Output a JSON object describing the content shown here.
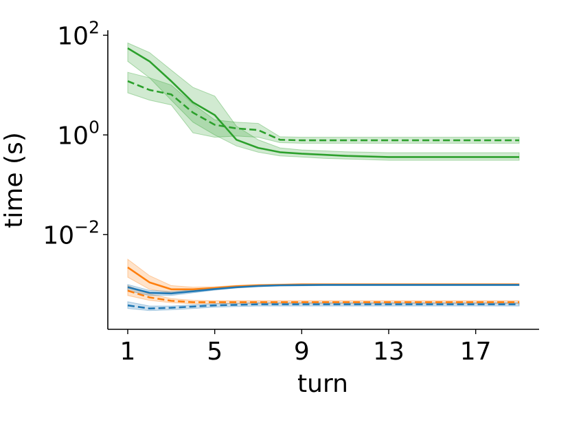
{
  "chart_data": {
    "type": "line",
    "title": "",
    "xlabel": "turn",
    "ylabel": "time (s)",
    "xlim": [
      1,
      19
    ],
    "ylim_log10": [
      -3.9,
      2.1
    ],
    "yscale": "log",
    "grid": false,
    "legend": "none",
    "x_ticks": [
      1,
      5,
      9,
      13,
      17
    ],
    "y_ticks": [
      {
        "log10": 2,
        "base": "10",
        "exp": "2"
      },
      {
        "log10": 0,
        "base": "10",
        "exp": "0"
      },
      {
        "log10": -2,
        "base": "10",
        "exp": "−2"
      }
    ],
    "x": [
      1,
      2,
      3,
      4,
      5,
      6,
      7,
      8,
      9,
      10,
      11,
      12,
      13,
      14,
      15,
      16,
      17,
      18,
      19
    ],
    "series": [
      {
        "color": "#2ca02c",
        "dash": "solid",
        "values": [
          55,
          30,
          12,
          4.5,
          2.5,
          0.8,
          0.55,
          0.45,
          0.42,
          0.4,
          0.38,
          0.37,
          0.36,
          0.36,
          0.36,
          0.36,
          0.36,
          0.36,
          0.36
        ],
        "lower": [
          30,
          14,
          5,
          1.8,
          1.0,
          0.6,
          0.45,
          0.38,
          0.36,
          0.34,
          0.33,
          0.32,
          0.31,
          0.31,
          0.31,
          0.31,
          0.31,
          0.31,
          0.31
        ],
        "upper": [
          70,
          45,
          20,
          9,
          6,
          1.5,
          0.8,
          0.55,
          0.5,
          0.48,
          0.46,
          0.45,
          0.44,
          0.44,
          0.44,
          0.44,
          0.44,
          0.44,
          0.44
        ]
      },
      {
        "color": "#2ca02c",
        "dash": "dashed",
        "values": [
          12,
          8,
          6.5,
          2.8,
          1.6,
          1.35,
          1.25,
          0.8,
          0.78,
          0.78,
          0.78,
          0.78,
          0.78,
          0.78,
          0.78,
          0.78,
          0.78,
          0.78,
          0.78
        ],
        "lower": [
          7,
          5,
          4,
          1.1,
          0.9,
          0.95,
          0.9,
          0.7,
          0.68,
          0.68,
          0.68,
          0.68,
          0.68,
          0.68,
          0.68,
          0.68,
          0.68,
          0.68,
          0.68
        ],
        "upper": [
          18,
          14,
          10,
          4.2,
          2.0,
          1.8,
          1.7,
          0.92,
          0.9,
          0.9,
          0.9,
          0.9,
          0.9,
          0.9,
          0.9,
          0.9,
          0.9,
          0.9,
          0.9
        ]
      },
      {
        "color": "#ff7f0e",
        "dash": "solid",
        "values": [
          0.0022,
          0.0011,
          0.0008,
          0.0008,
          0.00085,
          0.00092,
          0.00096,
          0.00098,
          0.001,
          0.001,
          0.001,
          0.001,
          0.001,
          0.001,
          0.001,
          0.001,
          0.001,
          0.001,
          0.001
        ],
        "lower": [
          0.0014,
          0.0008,
          0.00068,
          0.00072,
          0.0008,
          0.00088,
          0.00092,
          0.00094,
          0.00096,
          0.00096,
          0.00096,
          0.00096,
          0.00096,
          0.00096,
          0.00096,
          0.00096,
          0.00096,
          0.00096,
          0.00096
        ],
        "upper": [
          0.0032,
          0.0015,
          0.00095,
          0.00088,
          0.0009,
          0.00096,
          0.001,
          0.00102,
          0.00104,
          0.00104,
          0.00104,
          0.00104,
          0.00104,
          0.00104,
          0.00104,
          0.00104,
          0.00104,
          0.00104,
          0.00104
        ]
      },
      {
        "color": "#ff7f0e",
        "dash": "dashed",
        "values": [
          0.00075,
          0.00055,
          0.00047,
          0.00044,
          0.00044,
          0.00044,
          0.00044,
          0.00044,
          0.00044,
          0.00044,
          0.00044,
          0.00044,
          0.00044,
          0.00044,
          0.00044,
          0.00044,
          0.00044,
          0.00044,
          0.00044
        ],
        "lower": [
          0.0006,
          0.00048,
          0.00043,
          0.00041,
          0.00041,
          0.00041,
          0.00041,
          0.00041,
          0.00041,
          0.00041,
          0.00041,
          0.00041,
          0.00041,
          0.00041,
          0.00041,
          0.00041,
          0.00041,
          0.00041,
          0.00041
        ],
        "upper": [
          0.00095,
          0.00064,
          0.00052,
          0.00048,
          0.00047,
          0.00047,
          0.00047,
          0.00047,
          0.00047,
          0.00047,
          0.00047,
          0.00047,
          0.00047,
          0.00047,
          0.00047,
          0.00047,
          0.00047,
          0.00047,
          0.00047
        ]
      },
      {
        "color": "#1f77b4",
        "dash": "solid",
        "values": [
          0.00088,
          0.00068,
          0.00066,
          0.00073,
          0.00081,
          0.00088,
          0.00093,
          0.00096,
          0.00097,
          0.00098,
          0.00098,
          0.00098,
          0.00098,
          0.00098,
          0.00098,
          0.00098,
          0.00098,
          0.00098,
          0.00098
        ],
        "lower": [
          0.00075,
          0.0006,
          0.0006,
          0.00068,
          0.00077,
          0.00085,
          0.0009,
          0.00093,
          0.00094,
          0.00095,
          0.00095,
          0.00095,
          0.00095,
          0.00095,
          0.00095,
          0.00095,
          0.00095,
          0.00095,
          0.00095
        ],
        "upper": [
          0.001,
          0.00076,
          0.00072,
          0.00078,
          0.00085,
          0.00091,
          0.00096,
          0.00099,
          0.001,
          0.00101,
          0.00101,
          0.00101,
          0.00101,
          0.00101,
          0.00101,
          0.00101,
          0.00101,
          0.00101,
          0.00101
        ]
      },
      {
        "color": "#1f77b4",
        "dash": "dashed",
        "values": [
          0.00038,
          0.00033,
          0.00034,
          0.00036,
          0.00038,
          0.00039,
          0.0004,
          0.0004,
          0.0004,
          0.0004,
          0.0004,
          0.0004,
          0.0004,
          0.0004,
          0.0004,
          0.0004,
          0.0004,
          0.0004,
          0.0004
        ],
        "lower": [
          0.00033,
          0.0003,
          0.00031,
          0.00033,
          0.00035,
          0.00036,
          0.00037,
          0.00037,
          0.00037,
          0.00037,
          0.00037,
          0.00037,
          0.00037,
          0.00037,
          0.00037,
          0.00037,
          0.00037,
          0.00037,
          0.00037
        ],
        "upper": [
          0.00045,
          0.00037,
          0.00037,
          0.00039,
          0.00041,
          0.00042,
          0.00043,
          0.00043,
          0.00043,
          0.00043,
          0.00043,
          0.00043,
          0.00043,
          0.00043,
          0.00043,
          0.00043,
          0.00043,
          0.00043,
          0.00043
        ]
      }
    ]
  }
}
